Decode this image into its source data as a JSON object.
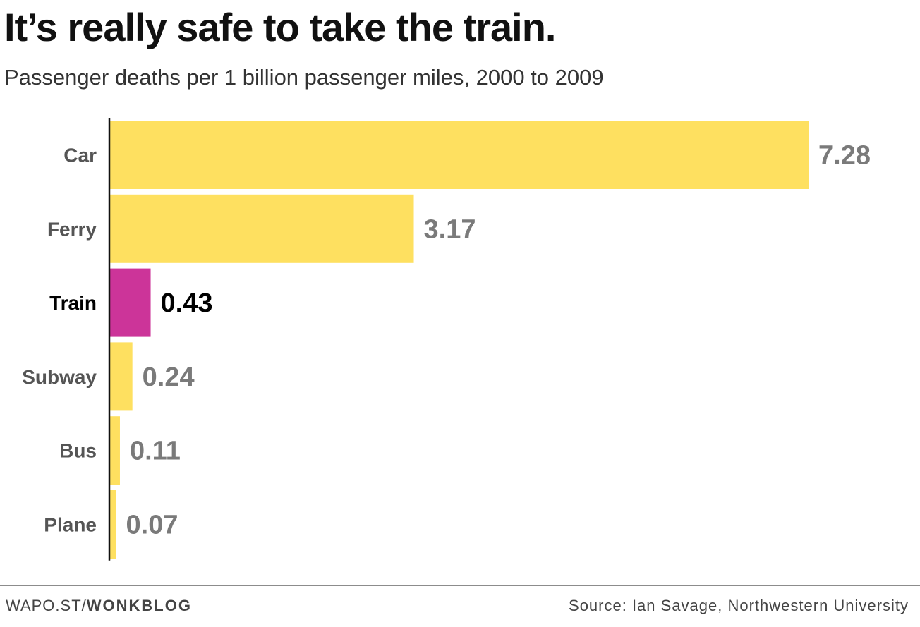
{
  "header": {
    "title": "It’s really safe to take the train.",
    "subtitle": "Passenger deaths per 1 billion passenger miles, 2000 to 2009"
  },
  "footer": {
    "credit_prefix": "WAPO.ST/",
    "credit_brand": "WONKBLOG",
    "source": "Source: Ian Savage, Northwestern University"
  },
  "colors": {
    "bar_default": "#FEE060",
    "bar_highlight": "#CC3499",
    "label_default": "#555555",
    "value_default": "#7a7a7a",
    "highlight_text": "#000000",
    "axis": "#111111"
  },
  "chart_data": {
    "type": "bar",
    "orientation": "horizontal",
    "title": "It’s really safe to take the train.",
    "subtitle": "Passenger deaths per 1 billion passenger miles, 2000 to 2009",
    "categories": [
      "Car",
      "Ferry",
      "Train",
      "Subway",
      "Bus",
      "Plane"
    ],
    "values": [
      7.28,
      3.17,
      0.43,
      0.24,
      0.11,
      0.07
    ],
    "value_labels": [
      "7.28",
      "3.17",
      "0.43",
      "0.24",
      "0.11",
      "0.07"
    ],
    "highlight": "Train",
    "xlim": [
      0,
      7.28
    ],
    "grid": false,
    "legend": "none"
  }
}
